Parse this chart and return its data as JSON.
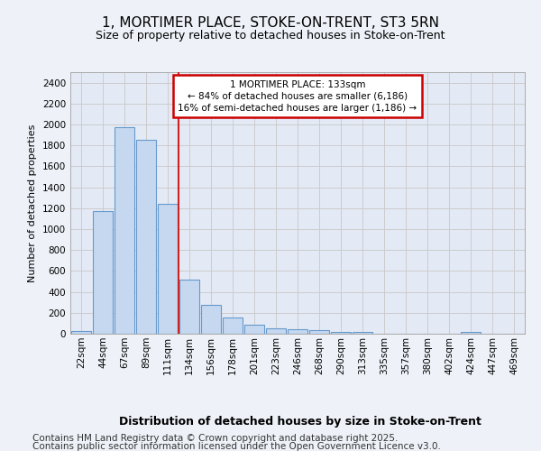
{
  "title1": "1, MORTIMER PLACE, STOKE-ON-TRENT, ST3 5RN",
  "title2": "Size of property relative to detached houses in Stoke-on-Trent",
  "xlabel": "Distribution of detached houses by size in Stoke-on-Trent",
  "ylabel": "Number of detached properties",
  "categories": [
    "22sqm",
    "44sqm",
    "67sqm",
    "89sqm",
    "111sqm",
    "134sqm",
    "156sqm",
    "178sqm",
    "201sqm",
    "223sqm",
    "246sqm",
    "268sqm",
    "290sqm",
    "313sqm",
    "335sqm",
    "357sqm",
    "380sqm",
    "402sqm",
    "424sqm",
    "447sqm",
    "469sqm"
  ],
  "values": [
    25,
    1175,
    1975,
    1850,
    1245,
    520,
    275,
    155,
    90,
    50,
    42,
    35,
    20,
    15,
    0,
    0,
    0,
    0,
    18,
    0,
    0
  ],
  "bar_color": "#c5d8f0",
  "bar_edge_color": "#6699cc",
  "vline_color": "#cc2222",
  "vline_x": 5,
  "annotation_text": "1 MORTIMER PLACE: 133sqm\n← 84% of detached houses are smaller (6,186)\n16% of semi-detached houses are larger (1,186) →",
  "annotation_box_color": "#ffffff",
  "annotation_box_edge": "#cc0000",
  "annotation_fontsize": 7.5,
  "ylim": [
    0,
    2500
  ],
  "yticks": [
    0,
    200,
    400,
    600,
    800,
    1000,
    1200,
    1400,
    1600,
    1800,
    2000,
    2200,
    2400
  ],
  "grid_color": "#cccccc",
  "bg_color": "#eef2f8",
  "plot_bg_color": "#e4eaf5",
  "footer1": "Contains HM Land Registry data © Crown copyright and database right 2025.",
  "footer2": "Contains public sector information licensed under the Open Government Licence v3.0.",
  "footer_fontsize": 7.5,
  "title1_fontsize": 11,
  "title2_fontsize": 9,
  "xlabel_fontsize": 9,
  "ylabel_fontsize": 8,
  "tick_fontsize": 7.5
}
